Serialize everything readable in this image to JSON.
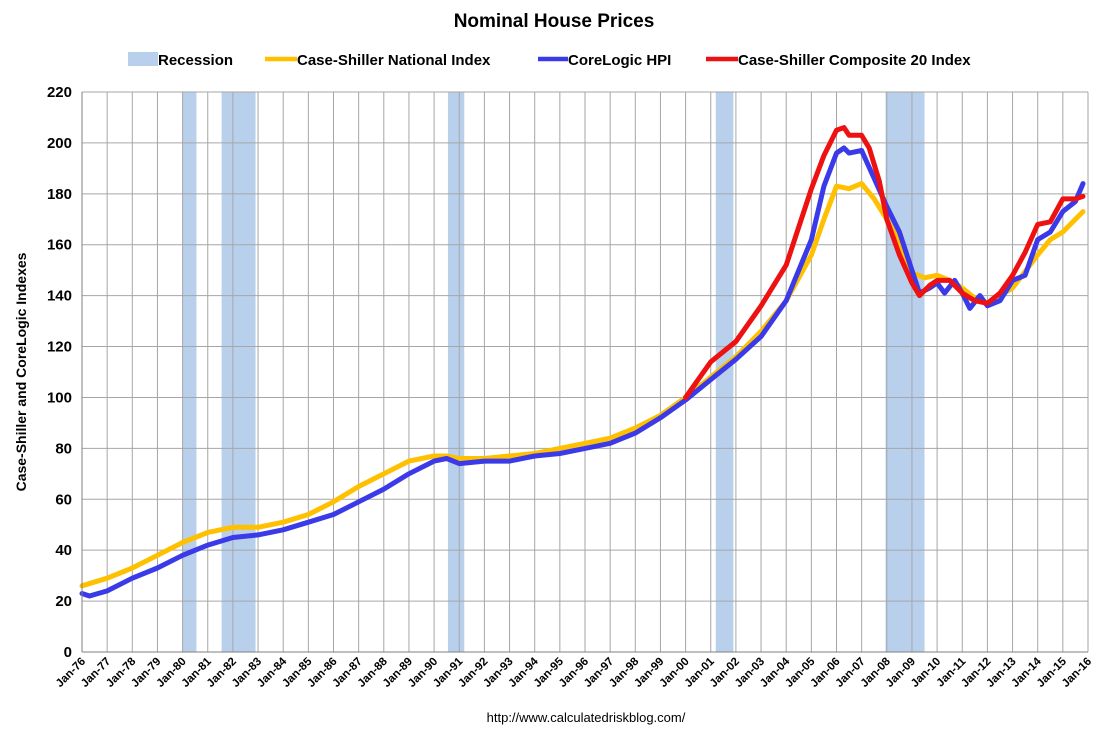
{
  "chart_data": {
    "type": "line",
    "title": "Nominal House Prices",
    "ylabel": "Case-Shiller and CoreLogic Indexes",
    "xlabel": "",
    "footer": "http://www.calculatedriskblog.com/",
    "ylim": [
      0,
      220
    ],
    "xlim": [
      1976,
      2016
    ],
    "y_ticks": [
      "0",
      "20",
      "40",
      "60",
      "80",
      "100",
      "120",
      "140",
      "160",
      "180",
      "200",
      "220"
    ],
    "x_ticks": [
      "Jan-76",
      "Jan-77",
      "Jan-78",
      "Jan-79",
      "Jan-80",
      "Jan-81",
      "Jan-82",
      "Jan-83",
      "Jan-84",
      "Jan-85",
      "Jan-86",
      "Jan-87",
      "Jan-88",
      "Jan-89",
      "Jan-90",
      "Jan-91",
      "Jan-92",
      "Jan-93",
      "Jan-94",
      "Jan-95",
      "Jan-96",
      "Jan-97",
      "Jan-98",
      "Jan-99",
      "Jan-00",
      "Jan-01",
      "Jan-02",
      "Jan-03",
      "Jan-04",
      "Jan-05",
      "Jan-06",
      "Jan-07",
      "Jan-08",
      "Jan-09",
      "Jan-10",
      "Jan-11",
      "Jan-12",
      "Jan-13",
      "Jan-14",
      "Jan-15",
      "Jan-16"
    ],
    "grid": true,
    "legend_position": "top",
    "legend": {
      "recession": "Recession",
      "national": "Case-Shiller National Index",
      "corelogic": "CoreLogic HPI",
      "composite20": "Case-Shiller Composite 20 Index"
    },
    "colors": {
      "recession": "#b8d0ec",
      "national": "#ffc000",
      "corelogic": "#3a3ae8",
      "composite20": "#ee1111"
    },
    "recessions": [
      [
        1980.0,
        1980.55
      ],
      [
        1981.55,
        1982.9
      ],
      [
        1990.55,
        1991.2
      ],
      [
        2001.2,
        2001.9
      ],
      [
        2007.95,
        2009.5
      ]
    ],
    "series": [
      {
        "name": "Case-Shiller National Index",
        "key": "national",
        "x": [
          1976,
          1977,
          1978,
          1979,
          1980,
          1981,
          1982,
          1983,
          1984,
          1985,
          1986,
          1987,
          1988,
          1989,
          1990,
          1990.5,
          1991,
          1992,
          1993,
          1994,
          1995,
          1996,
          1997,
          1998,
          1999,
          2000,
          2001,
          2002,
          2003,
          2004,
          2005,
          2005.5,
          2006,
          2006.5,
          2007,
          2007.5,
          2008,
          2008.5,
          2009,
          2009.5,
          2010,
          2010.5,
          2011,
          2011.5,
          2012,
          2013,
          2014,
          2014.5,
          2015,
          2015.5,
          2015.8
        ],
        "y": [
          26,
          29,
          33,
          38,
          43,
          47,
          49,
          49,
          51,
          54,
          59,
          65,
          70,
          75,
          77,
          77,
          76,
          76,
          77,
          78,
          80,
          82,
          84,
          88,
          93,
          100,
          108,
          116,
          126,
          138,
          156,
          170,
          183,
          182,
          184,
          178,
          170,
          161,
          149,
          147,
          148,
          146,
          143,
          139,
          137,
          143,
          156,
          162,
          165,
          170,
          173
        ]
      },
      {
        "name": "CoreLogic HPI",
        "key": "corelogic",
        "x": [
          1976,
          1976.3,
          1977,
          1978,
          1979,
          1980,
          1981,
          1982,
          1983,
          1984,
          1985,
          1986,
          1987,
          1988,
          1989,
          1990,
          1990.5,
          1991,
          1992,
          1993,
          1994,
          1995,
          1996,
          1997,
          1998,
          1999,
          2000,
          2001,
          2002,
          2003,
          2004,
          2005,
          2005.5,
          2006,
          2006.3,
          2006.5,
          2007,
          2007.5,
          2008,
          2008.5,
          2009,
          2009.3,
          2009.7,
          2010,
          2010.3,
          2010.7,
          2011,
          2011.3,
          2011.7,
          2012,
          2012.5,
          2013,
          2013.5,
          2014,
          2014.5,
          2015,
          2015.5,
          2015.8
        ],
        "y": [
          23,
          22,
          24,
          29,
          33,
          38,
          42,
          45,
          46,
          48,
          51,
          54,
          59,
          64,
          70,
          75,
          76,
          74,
          75,
          75,
          77,
          78,
          80,
          82,
          86,
          92,
          99,
          107,
          115,
          124,
          138,
          162,
          183,
          196,
          198,
          196,
          197,
          186,
          175,
          165,
          150,
          141,
          143,
          145,
          141,
          146,
          141,
          135,
          140,
          136,
          138,
          146,
          148,
          162,
          165,
          173,
          177,
          184
        ]
      },
      {
        "name": "Case-Shiller Composite 20 Index",
        "key": "composite20",
        "x": [
          2000,
          2000.5,
          2001,
          2002,
          2003,
          2004,
          2005,
          2005.5,
          2006,
          2006.3,
          2006.5,
          2007,
          2007.3,
          2007.7,
          2008,
          2008.5,
          2009,
          2009.3,
          2009.7,
          2010,
          2010.5,
          2011,
          2011.5,
          2012,
          2012.5,
          2013,
          2013.5,
          2014,
          2014.5,
          2015,
          2015.5,
          2015.8
        ],
        "y": [
          100,
          107,
          114,
          122,
          136,
          152,
          182,
          195,
          205,
          206,
          203,
          203,
          198,
          185,
          170,
          156,
          145,
          140,
          144,
          146,
          146,
          141,
          138,
          137,
          141,
          148,
          157,
          168,
          169,
          178,
          178,
          179
        ]
      }
    ]
  }
}
